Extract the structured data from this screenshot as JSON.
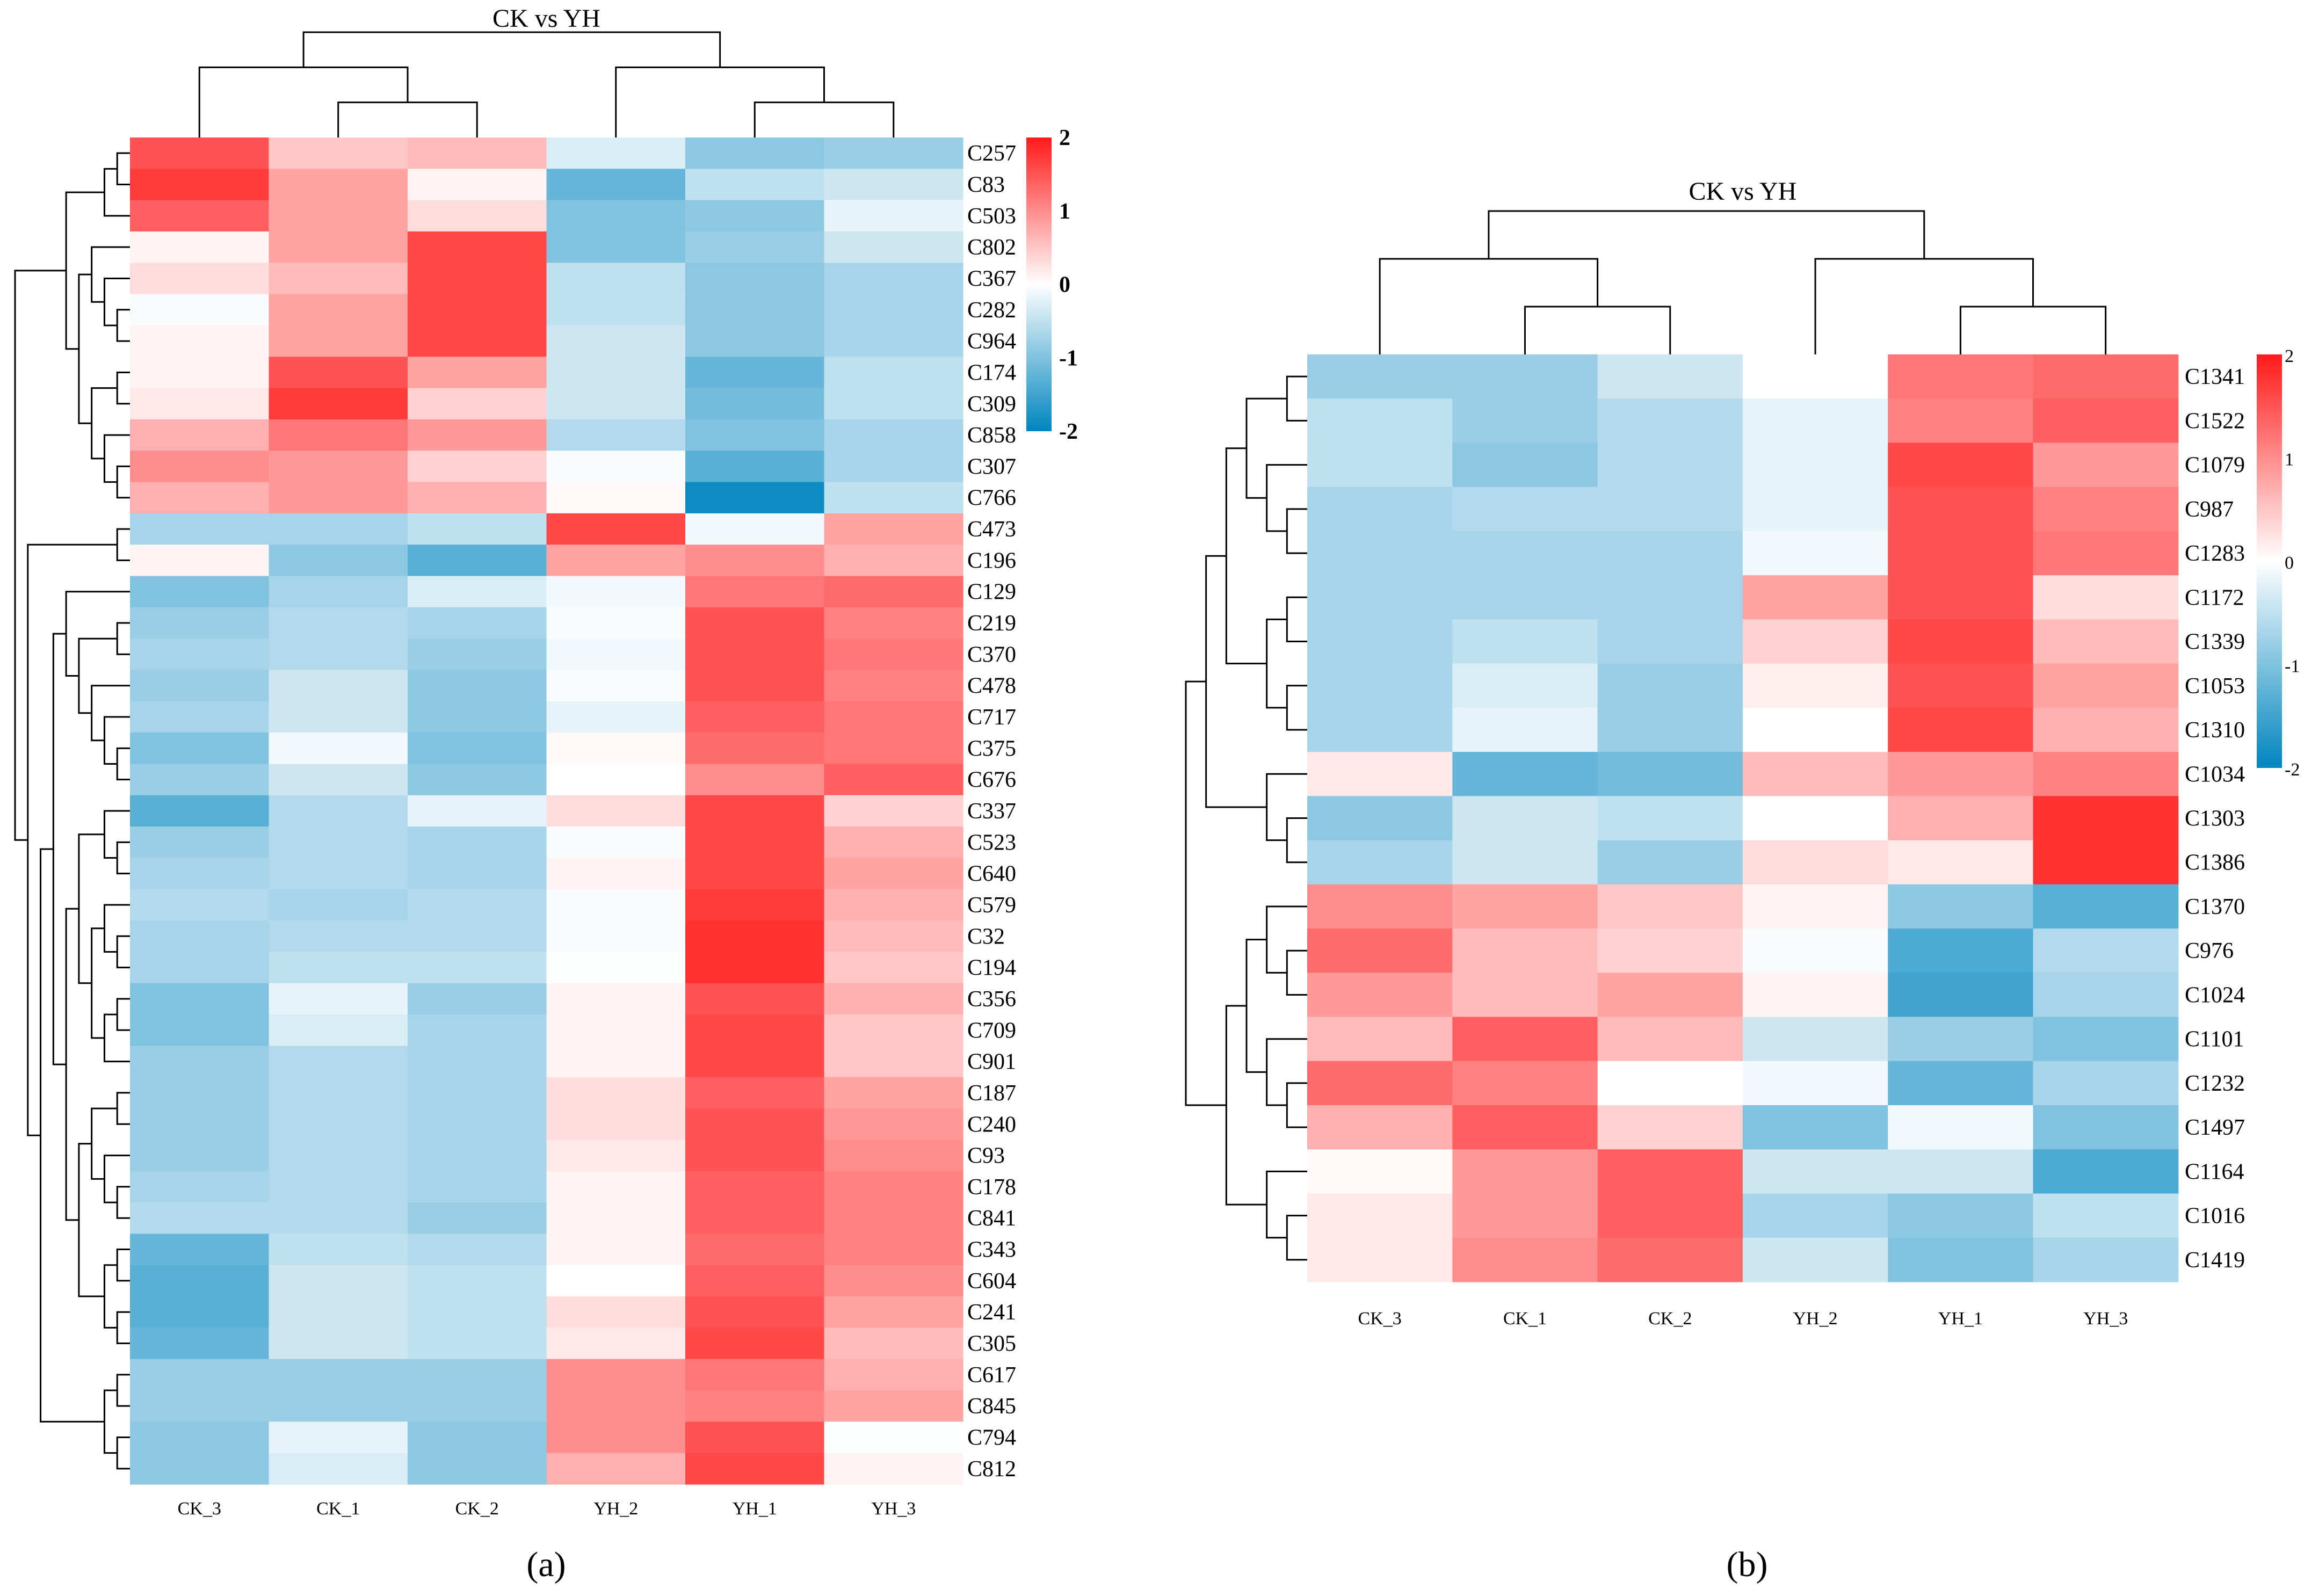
{
  "chart_data": [
    {
      "type": "heatmap",
      "panel_label": "(a)",
      "title": "CK vs YH",
      "columns": [
        "CK_3",
        "CK_1",
        "CK_2",
        "YH_2",
        "YH_1",
        "YH_3"
      ],
      "rows": [
        "C257",
        "C83",
        "C503",
        "C802",
        "C367",
        "C282",
        "C964",
        "C174",
        "C309",
        "C858",
        "C307",
        "C766",
        "C473",
        "C196",
        "C129",
        "C219",
        "C370",
        "C478",
        "C717",
        "C375",
        "C676",
        "C337",
        "C523",
        "C640",
        "C579",
        "C32",
        "C194",
        "C356",
        "C709",
        "C901",
        "C187",
        "C240",
        "C93",
        "C178",
        "C841",
        "C343",
        "C604",
        "C241",
        "C305",
        "C617",
        "C845",
        "C794",
        "C812"
      ],
      "values": [
        [
          1.5,
          0.5,
          0.6,
          -0.3,
          -0.9,
          -0.8
        ],
        [
          1.7,
          0.8,
          0.1,
          -1.2,
          -0.5,
          -0.4
        ],
        [
          1.4,
          0.8,
          0.3,
          -1.0,
          -0.9,
          -0.2
        ],
        [
          0.1,
          0.8,
          1.6,
          -1.0,
          -0.8,
          -0.4
        ],
        [
          0.3,
          0.6,
          1.6,
          -0.5,
          -0.9,
          -0.7
        ],
        [
          -0.05,
          0.8,
          1.6,
          -0.5,
          -0.9,
          -0.7
        ],
        [
          0.1,
          0.8,
          1.6,
          -0.4,
          -0.9,
          -0.7
        ],
        [
          0.1,
          1.5,
          0.8,
          -0.4,
          -1.2,
          -0.5
        ],
        [
          0.2,
          1.7,
          0.4,
          -0.4,
          -1.1,
          -0.5
        ],
        [
          0.7,
          1.2,
          0.9,
          -0.6,
          -1.0,
          -0.7
        ],
        [
          1.0,
          0.9,
          0.4,
          -0.05,
          -1.3,
          -0.7
        ],
        [
          0.7,
          0.9,
          0.7,
          0.05,
          -1.9,
          -0.5
        ],
        [
          -0.7,
          -0.7,
          -0.5,
          1.6,
          -0.1,
          0.8
        ],
        [
          0.1,
          -0.9,
          -1.3,
          0.8,
          1.0,
          0.7
        ],
        [
          -1.0,
          -0.7,
          -0.3,
          -0.1,
          1.2,
          1.3
        ],
        [
          -0.8,
          -0.6,
          -0.7,
          -0.05,
          1.5,
          1.1
        ],
        [
          -0.7,
          -0.6,
          -0.8,
          -0.1,
          1.5,
          1.2
        ],
        [
          -0.8,
          -0.4,
          -0.9,
          -0.05,
          1.5,
          1.1
        ],
        [
          -0.7,
          -0.4,
          -0.9,
          -0.2,
          1.4,
          1.2
        ],
        [
          -1.0,
          -0.1,
          -1.0,
          0.05,
          1.3,
          1.2
        ],
        [
          -0.8,
          -0.4,
          -0.9,
          0.0,
          1.0,
          1.4
        ],
        [
          -1.3,
          -0.6,
          -0.2,
          0.3,
          1.6,
          0.4
        ],
        [
          -0.8,
          -0.6,
          -0.7,
          -0.05,
          1.6,
          0.7
        ],
        [
          -0.7,
          -0.6,
          -0.7,
          0.1,
          1.6,
          0.8
        ],
        [
          -0.6,
          -0.7,
          -0.6,
          -0.05,
          1.7,
          0.7
        ],
        [
          -0.7,
          -0.6,
          -0.6,
          -0.05,
          1.8,
          0.6
        ],
        [
          -0.7,
          -0.5,
          -0.5,
          -0.02,
          1.8,
          0.5
        ],
        [
          -1.0,
          -0.2,
          -0.8,
          0.1,
          1.5,
          0.7
        ],
        [
          -1.0,
          -0.3,
          -0.7,
          0.1,
          1.6,
          0.5
        ],
        [
          -0.8,
          -0.6,
          -0.7,
          0.1,
          1.6,
          0.5
        ],
        [
          -0.8,
          -0.6,
          -0.7,
          0.3,
          1.4,
          0.8
        ],
        [
          -0.8,
          -0.6,
          -0.7,
          0.3,
          1.5,
          0.9
        ],
        [
          -0.8,
          -0.6,
          -0.7,
          0.2,
          1.5,
          1.0
        ],
        [
          -0.7,
          -0.6,
          -0.7,
          0.1,
          1.4,
          1.1
        ],
        [
          -0.6,
          -0.6,
          -0.8,
          0.1,
          1.4,
          1.1
        ],
        [
          -1.2,
          -0.5,
          -0.6,
          0.1,
          1.3,
          1.1
        ],
        [
          -1.3,
          -0.4,
          -0.5,
          0.0,
          1.4,
          1.0
        ],
        [
          -1.3,
          -0.4,
          -0.5,
          0.3,
          1.5,
          0.8
        ],
        [
          -1.2,
          -0.4,
          -0.5,
          0.2,
          1.6,
          0.6
        ],
        [
          -0.8,
          -0.8,
          -0.8,
          1.0,
          1.2,
          0.7
        ],
        [
          -0.8,
          -0.8,
          -0.8,
          1.0,
          1.1,
          0.8
        ],
        [
          -0.9,
          -0.2,
          -0.9,
          1.0,
          1.5,
          -0.02
        ],
        [
          -0.9,
          -0.3,
          -0.9,
          0.7,
          1.6,
          0.1
        ]
      ],
      "col_tree": [
        [
          0,
          [
            1,
            2
          ]
        ],
        [
          3,
          [
            4,
            5
          ]
        ]
      ],
      "row_tree": [
        [
          [
            [
              0,
              1
            ],
            2
          ],
          [
            [
              3,
              [
                4,
                [
                  5,
                  6
                ]
              ]
            ],
            [
              [
                7,
                8
              ],
              [
                9,
                [
                  10,
                  11
                ]
              ]
            ]
          ]
        ],
        [
          [
            12,
            13
          ],
          [
            [
              [
                14,
                [
                  [
                    15,
                    16
                  ],
                  [
                    17,
                    [
                      18,
                      [
                        19,
                        20
                      ]
                    ]
                  ]
                ]
              ],
              [
                [
                  [
                    21,
                    [
                      22,
                      23
                    ]
                  ],
                  [
                    [
                      24,
                      [
                        25,
                        26
                      ]
                    ],
                    [
                      [
                        27,
                        28
                      ],
                      29
                    ]
                  ]
                ],
                [
                  [
                    [
                      30,
                      31
                    ],
                    [
                      32,
                      [
                        33,
                        34
                      ]
                    ]
                  ],
                  [
                    [
                      35,
                      36
                    ],
                    [
                      37,
                      38
                    ]
                  ]
                ]
              ]
            ],
            [
              [
                39,
                40
              ],
              [
                41,
                42
              ]
            ]
          ]
        ]
      ],
      "legend": {
        "range": [
          -2,
          2
        ],
        "ticks": [
          "2",
          "1",
          "0",
          "-1",
          "-2"
        ],
        "tick_values": [
          2,
          1,
          0,
          -1,
          -2
        ],
        "high_color": "#FF1A1A",
        "mid_color": "#FFFFFF",
        "low_color": "#0085BF"
      }
    },
    {
      "type": "heatmap",
      "panel_label": "(b)",
      "title": "CK vs YH",
      "columns": [
        "CK_3",
        "CK_1",
        "CK_2",
        "YH_2",
        "YH_1",
        "YH_3"
      ],
      "rows": [
        "C1341",
        "C1522",
        "C1079",
        "C987",
        "C1283",
        "C1172",
        "C1339",
        "C1053",
        "C1310",
        "C1034",
        "C1303",
        "C1386",
        "C1370",
        "C976",
        "C1024",
        "C1101",
        "C1232",
        "C1497",
        "C1164",
        "C1016",
        "C1419"
      ],
      "values": [
        [
          -0.8,
          -0.8,
          -0.4,
          0.0,
          1.2,
          1.3
        ],
        [
          -0.5,
          -0.8,
          -0.6,
          -0.2,
          1.1,
          1.4
        ],
        [
          -0.5,
          -0.9,
          -0.6,
          -0.2,
          1.6,
          0.9
        ],
        [
          -0.7,
          -0.6,
          -0.6,
          -0.2,
          1.5,
          1.1
        ],
        [
          -0.7,
          -0.7,
          -0.7,
          -0.1,
          1.5,
          1.2
        ],
        [
          -0.7,
          -0.7,
          -0.7,
          0.8,
          1.5,
          0.3
        ],
        [
          -0.7,
          -0.5,
          -0.7,
          0.4,
          1.6,
          0.6
        ],
        [
          -0.7,
          -0.3,
          -0.8,
          0.15,
          1.5,
          0.8
        ],
        [
          -0.7,
          -0.2,
          -0.8,
          0.0,
          1.6,
          0.7
        ],
        [
          0.2,
          -1.2,
          -1.1,
          0.6,
          0.9,
          1.1
        ],
        [
          -0.9,
          -0.4,
          -0.5,
          0.0,
          0.7,
          1.8
        ],
        [
          -0.7,
          -0.4,
          -0.8,
          0.3,
          0.2,
          1.8
        ],
        [
          1.0,
          0.8,
          0.5,
          0.1,
          -0.9,
          -1.3
        ],
        [
          1.3,
          0.6,
          0.4,
          -0.05,
          -1.4,
          -0.6
        ],
        [
          0.9,
          0.6,
          0.8,
          0.1,
          -1.5,
          -0.7
        ],
        [
          0.6,
          1.4,
          0.6,
          -0.4,
          -0.8,
          -1.0
        ],
        [
          1.3,
          1.1,
          0.0,
          -0.1,
          -1.2,
          -0.7
        ],
        [
          0.7,
          1.4,
          0.4,
          -1.0,
          -0.1,
          -1.0
        ],
        [
          0.05,
          0.9,
          1.4,
          -0.4,
          -0.4,
          -1.4
        ],
        [
          0.2,
          0.9,
          1.4,
          -0.7,
          -0.9,
          -0.5
        ],
        [
          0.2,
          1.0,
          1.3,
          -0.4,
          -1.0,
          -0.7
        ]
      ],
      "col_tree": [
        [
          0,
          [
            1,
            2
          ]
        ],
        [
          3,
          [
            4,
            5
          ]
        ]
      ],
      "row_tree": [
        [
          [
            [
              [
                0,
                1
              ],
              [
                2,
                [
                  3,
                  4
                ]
              ]
            ],
            [
              [
                5,
                6
              ],
              [
                7,
                8
              ]
            ]
          ],
          [
            9,
            [
              10,
              11
            ]
          ]
        ],
        [
          [
            [
              12,
              [
                13,
                14
              ]
            ],
            [
              15,
              [
                16,
                17
              ]
            ]
          ],
          [
            18,
            [
              19,
              20
            ]
          ]
        ]
      ],
      "legend": {
        "range": [
          -2,
          2
        ],
        "ticks": [
          "2",
          "1",
          "0",
          "-1",
          "-2"
        ],
        "tick_values": [
          2,
          1,
          0,
          -1,
          -2
        ],
        "high_color": "#FF1A1A",
        "mid_color": "#FFFFFF",
        "low_color": "#0085BF"
      }
    }
  ]
}
